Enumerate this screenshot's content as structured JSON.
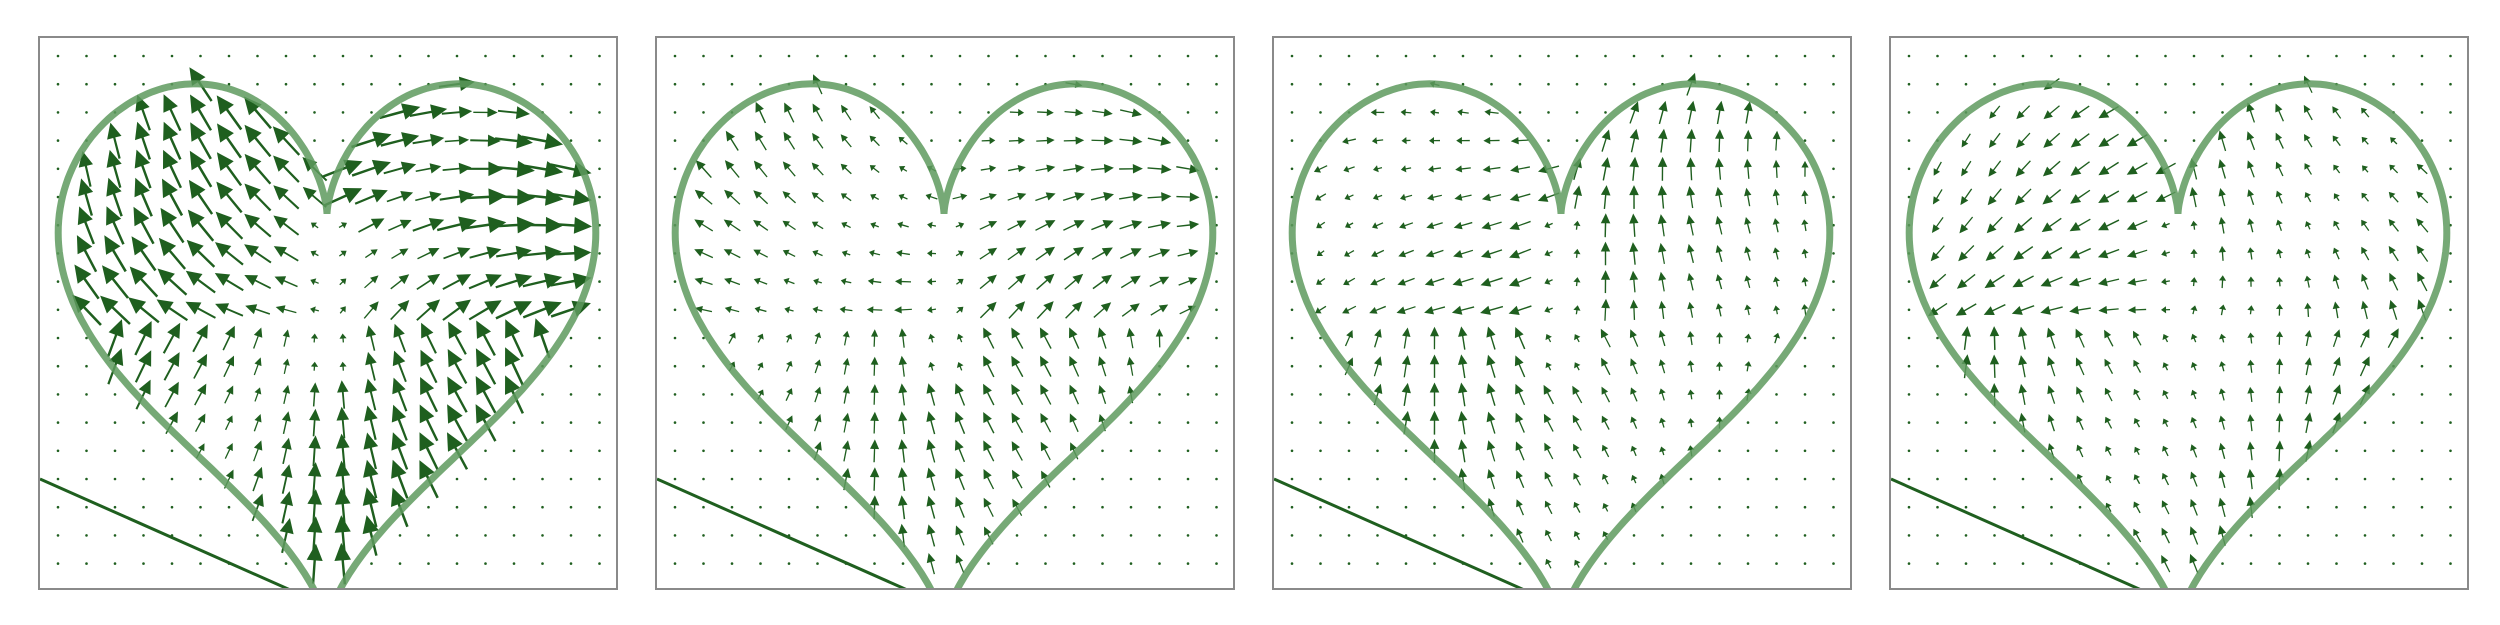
{
  "chart_data": [
    {
      "type": "quiver",
      "title": "",
      "xlabel": "",
      "ylabel": "",
      "xlim": [
        -1.5,
        1.5
      ],
      "ylim": [
        -1.5,
        1.5
      ],
      "grid": false,
      "legend": "none",
      "color": "#1f5f1f",
      "outline": "heart",
      "flow": "strong",
      "pattern": {
        "mode": "split",
        "theta_left": 2.6,
        "theta_right": 0.6
      }
    },
    {
      "type": "quiver",
      "title": "",
      "xlabel": "",
      "ylabel": "",
      "xlim": [
        -1.5,
        1.5
      ],
      "ylim": [
        -1.5,
        1.5
      ],
      "grid": false,
      "legend": "none",
      "color": "#1f5f1f",
      "outline": "heart",
      "flow": "moderate",
      "pattern": {
        "mode": "split",
        "theta_left": 2.7,
        "theta_right": 0.05
      }
    },
    {
      "type": "quiver",
      "title": "",
      "xlabel": "",
      "ylabel": "",
      "xlim": [
        -1.5,
        1.5
      ],
      "ylim": [
        -1.5,
        1.5
      ],
      "grid": false,
      "legend": "none",
      "color": "#1f5f1f",
      "outline": "heart",
      "flow": "moderate",
      "pattern": {
        "mode": "split",
        "theta_left": 3.2,
        "theta_right": 1.0
      }
    },
    {
      "type": "quiver",
      "title": "",
      "xlabel": "",
      "ylabel": "",
      "xlim": [
        -1.5,
        1.5
      ],
      "ylim": [
        -1.5,
        1.5
      ],
      "grid": false,
      "legend": "none",
      "color": "#1f5f1f",
      "outline": "heart",
      "flow": "moderate",
      "pattern": {
        "mode": "split",
        "theta_left": 3.4,
        "theta_right": 1.55
      }
    }
  ]
}
